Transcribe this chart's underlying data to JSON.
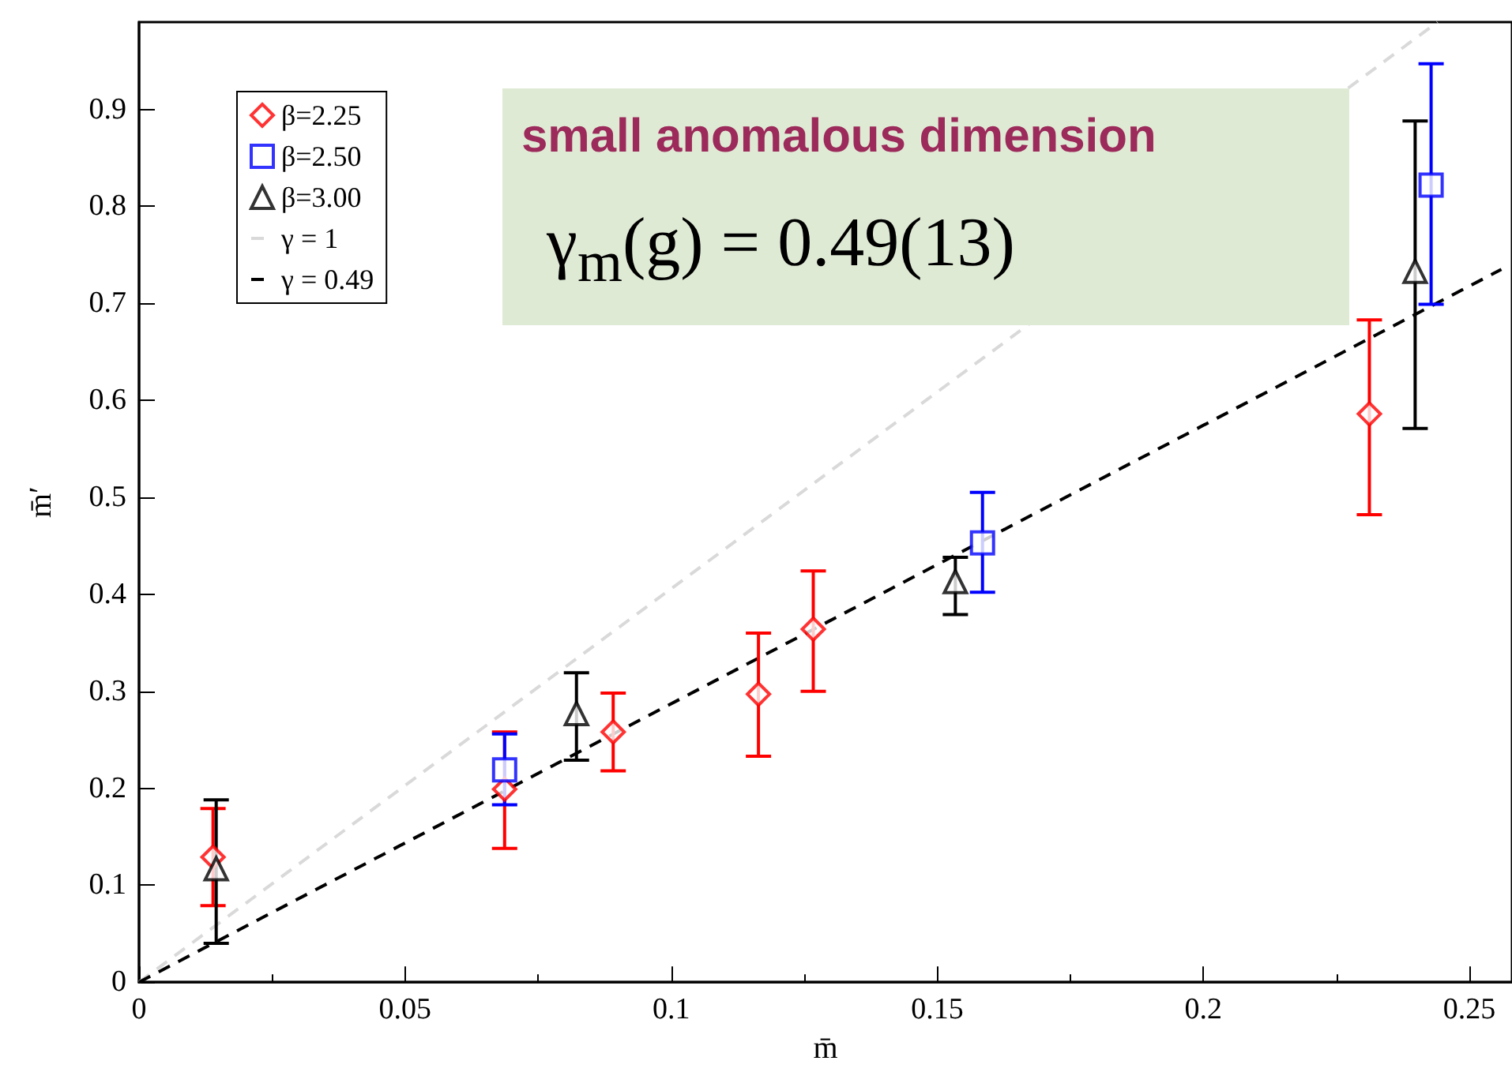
{
  "chart_data": {
    "type": "scatter",
    "xlabel": "m̄",
    "ylabel": "m̄′",
    "xlim": [
      0,
      0.258
    ],
    "ylim": [
      0,
      0.99
    ],
    "xticks": [
      0,
      0.05,
      0.1,
      0.15,
      0.2,
      0.25
    ],
    "yticks": [
      0,
      0.1,
      0.2,
      0.3,
      0.4,
      0.5,
      0.6,
      0.7,
      0.8,
      0.9
    ],
    "grid": false,
    "legend": "top left",
    "annotations": [
      "small anomalous dimension",
      "γ$_{m}$(g) = 0.49(13)"
    ],
    "series": [
      {
        "name": "β=2.25",
        "color": "#ff0000",
        "marker": "diamond",
        "x": [
          0.0139,
          0.0687,
          0.0891,
          0.1164,
          0.1267,
          0.2312
        ],
        "values": [
          0.129,
          0.199,
          0.258,
          0.297,
          0.364,
          0.586
        ],
        "errors": [
          [
            0.079,
            0.179
          ],
          [
            0.138,
            0.258
          ],
          [
            0.218,
            0.298
          ],
          [
            0.233,
            0.36
          ],
          [
            0.3,
            0.424
          ],
          [
            0.482,
            0.683
          ]
        ]
      },
      {
        "name": "β=2.50",
        "color": "#0000ff",
        "marker": "square",
        "x": [
          0.0687,
          0.1585,
          0.2428
        ],
        "values": [
          0.219,
          0.453,
          0.822
        ],
        "errors": [
          [
            0.183,
            0.256
          ],
          [
            0.402,
            0.505
          ],
          [
            0.699,
            0.947
          ]
        ]
      },
      {
        "name": "β=3.00",
        "color": "#000000",
        "marker": "triangle",
        "x": [
          0.0145,
          0.0822,
          0.1534,
          0.2398
        ],
        "values": [
          0.117,
          0.277,
          0.413,
          0.733
        ],
        "errors": [
          [
            0.04,
            0.188
          ],
          [
            0.229,
            0.319
          ],
          [
            0.379,
            0.438
          ],
          [
            0.571,
            0.888
          ]
        ]
      },
      {
        "name": "γ = 1",
        "type": "line",
        "color": "#d9d9d9",
        "marker": "none",
        "line_style": "dashed",
        "x": [
          0,
          0.244
        ],
        "values": [
          0,
          0.99
        ]
      },
      {
        "name": "γ = 0.49",
        "type": "line",
        "color": "#000000",
        "marker": "none",
        "line_style": "dashed",
        "x": [
          0,
          0.256
        ],
        "values": [
          0,
          0.735
        ]
      }
    ]
  }
}
